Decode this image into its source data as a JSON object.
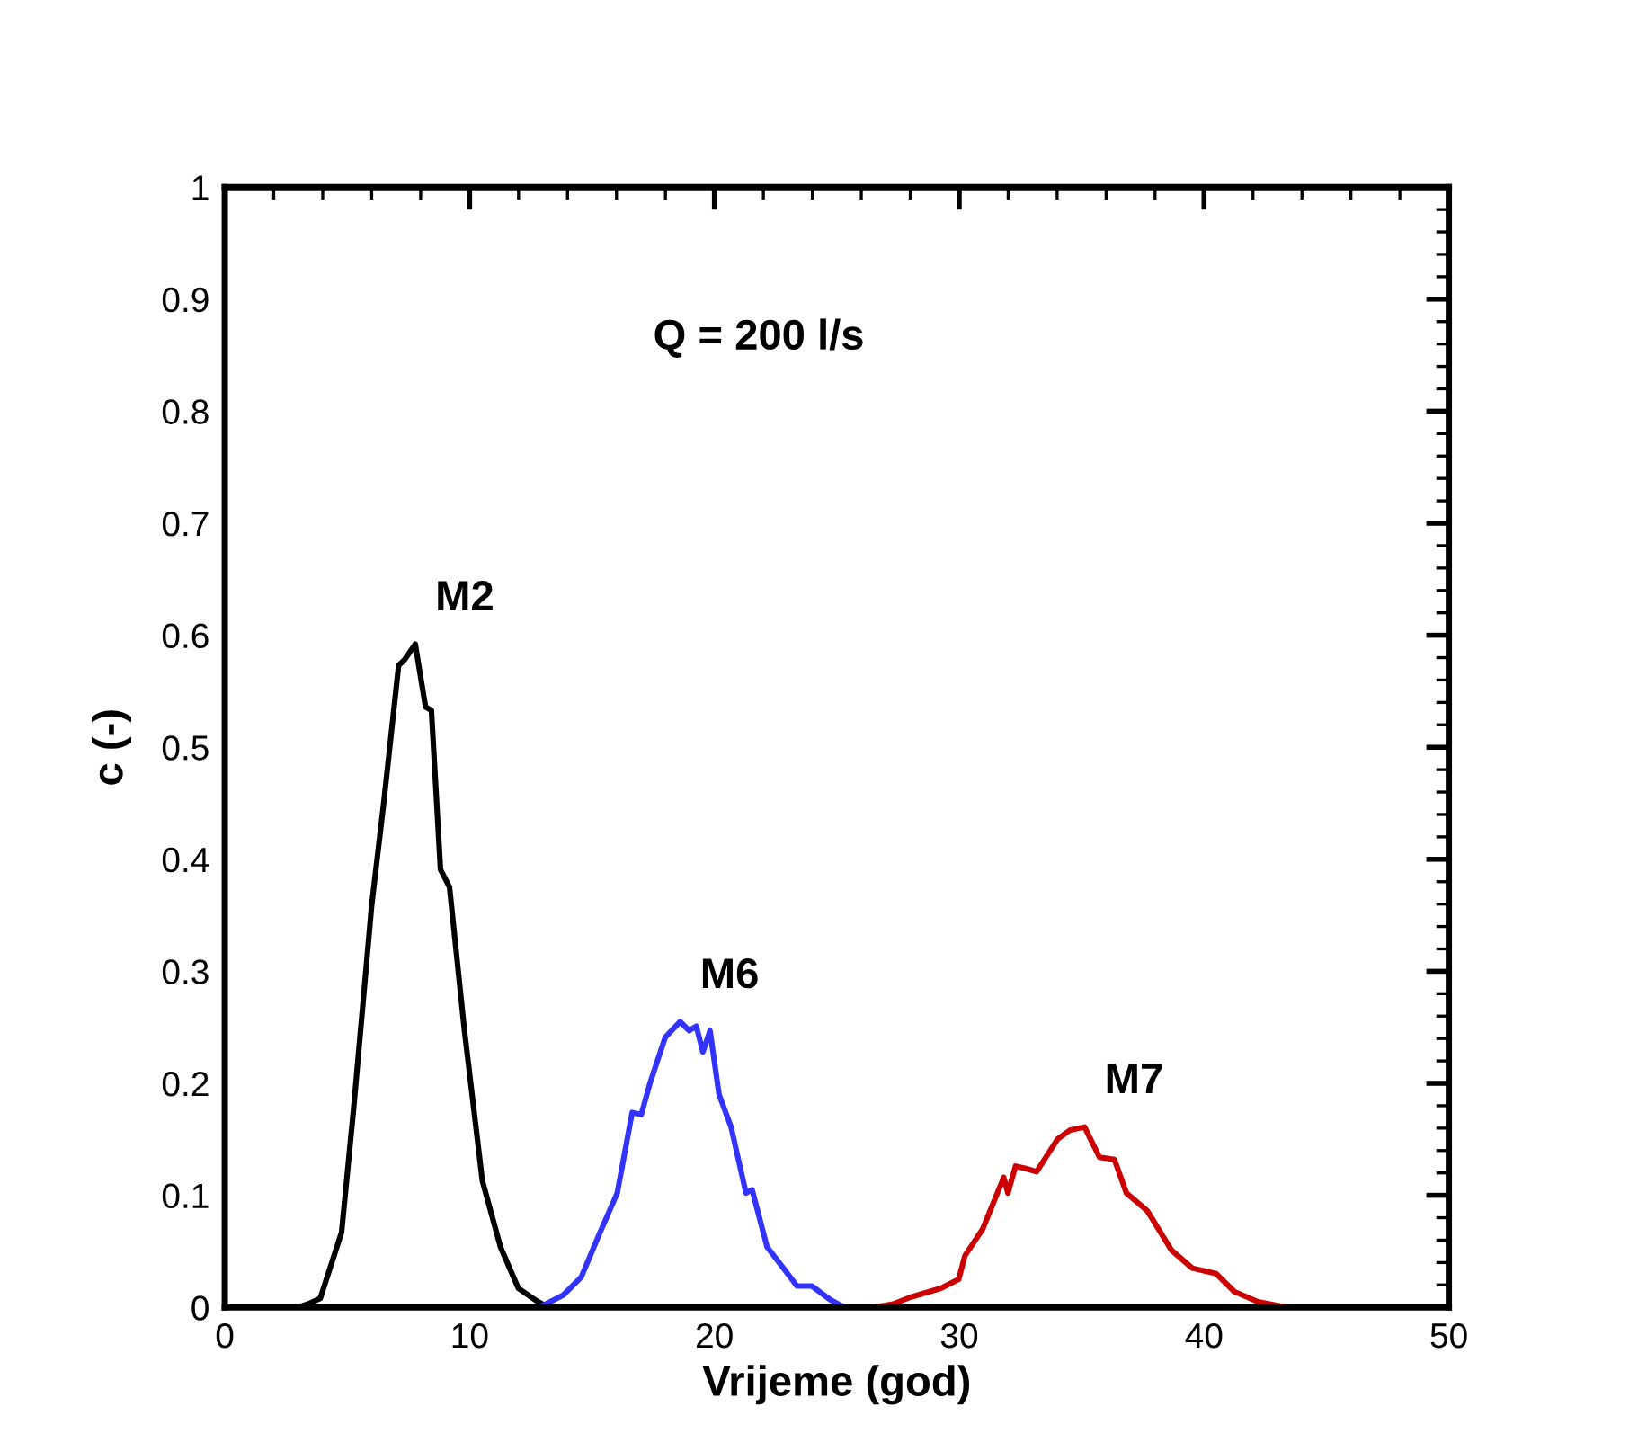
{
  "chart_data": {
    "type": "line",
    "xlabel": "Vrijeme (god)",
    "ylabel": "c (-)",
    "xlim": [
      0,
      50
    ],
    "xticks": [
      0,
      10,
      20,
      30,
      40,
      50
    ],
    "ylim": [
      0,
      1
    ],
    "yticks": [
      0,
      0.1,
      0.2,
      0.3,
      0.4,
      0.5,
      0.6,
      0.7,
      0.8,
      0.9,
      1
    ],
    "grid": false,
    "marker": "none",
    "line_style": "solid",
    "annotations": [
      "Q = 200 l/s",
      {
        "text": "M2",
        "x": 7.78,
        "y": 0.592
      },
      {
        "text": "M6",
        "x": 18.6,
        "y": 0.255
      },
      {
        "text": "M7",
        "x": 35.12,
        "y": 0.161
      }
    ],
    "series": [
      {
        "color": "#000000",
        "x": [
          3.0,
          3.4,
          3.9,
          4.77,
          5.26,
          6.0,
          6.49,
          7.1,
          7.34,
          7.78,
          8.2,
          8.44,
          8.81,
          9.18,
          9.79,
          10.52,
          11.26,
          11.99,
          12.72,
          13.2
        ],
        "values": [
          0,
          0.003,
          0.008,
          0.067,
          0.177,
          0.359,
          0.45,
          0.573,
          0.578,
          0.592,
          0.536,
          0.533,
          0.391,
          0.375,
          0.247,
          0.113,
          0.054,
          0.017,
          0.006,
          0
        ]
      },
      {
        "color": "#3333ff",
        "x": [
          12.85,
          13.83,
          14.56,
          15.29,
          16.03,
          16.64,
          17.01,
          17.38,
          17.99,
          18.6,
          18.97,
          19.26,
          19.53,
          19.82,
          20.19,
          20.68,
          21.29,
          21.54,
          22.15,
          22.89,
          23.37,
          23.98,
          24.72,
          25.3
        ],
        "values": [
          0,
          0.011,
          0.027,
          0.065,
          0.102,
          0.174,
          0.172,
          0.201,
          0.241,
          0.255,
          0.247,
          0.251,
          0.228,
          0.247,
          0.19,
          0.161,
          0.102,
          0.105,
          0.054,
          0.033,
          0.019,
          0.019,
          0.007,
          0
        ]
      },
      {
        "color": "#cc0000",
        "x": [
          26.5,
          27.3,
          28.0,
          29.25,
          29.98,
          30.23,
          30.96,
          31.82,
          31.99,
          32.3,
          32.72,
          33.16,
          34.01,
          34.51,
          35.12,
          35.73,
          36.34,
          36.83,
          37.69,
          38.67,
          39.52,
          40.5,
          41.24,
          42.2,
          43.4
        ],
        "values": [
          0,
          0.003,
          0.009,
          0.017,
          0.025,
          0.046,
          0.07,
          0.116,
          0.102,
          0.126,
          0.124,
          0.121,
          0.15,
          0.158,
          0.161,
          0.134,
          0.132,
          0.102,
          0.086,
          0.051,
          0.035,
          0.03,
          0.014,
          0.005,
          0
        ]
      }
    ]
  }
}
